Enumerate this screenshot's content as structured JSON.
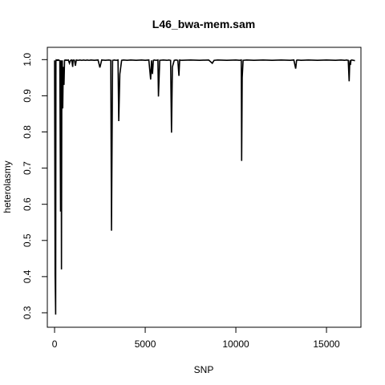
{
  "chart_data": {
    "type": "line",
    "title": "L46_bwa-mem.sam",
    "xlabel": "SNP",
    "ylabel": "heterolasmy",
    "xlim": [
      -400,
      16900
    ],
    "ylim": [
      0.26,
      1.034
    ],
    "x_ticks": [
      0,
      5000,
      10000,
      15000
    ],
    "y_ticks": [
      0.3,
      0.4,
      0.5,
      0.6,
      0.7,
      0.8,
      0.9,
      1.0
    ],
    "x_tick_labels": [
      "0",
      "5000",
      "10000",
      "15000"
    ],
    "y_tick_labels": [
      "0.3",
      "0.4",
      "0.5",
      "0.6",
      "0.7",
      "0.8",
      "0.9",
      "1.0"
    ],
    "grid": false,
    "legend": "none",
    "series": [
      {
        "color": "#000000",
        "x": [
          0,
          30,
          60,
          75,
          90,
          110,
          140,
          160,
          185,
          200,
          230,
          260,
          290,
          330,
          360,
          380,
          400,
          425,
          450,
          480,
          520,
          550,
          580,
          620,
          660,
          700,
          760,
          820,
          880,
          950,
          1000,
          1020,
          1060,
          1100,
          1150,
          1200,
          1300,
          1400,
          1500,
          1600,
          1700,
          1800,
          1900,
          2000,
          2200,
          2400,
          2500,
          2600,
          2800,
          3000,
          3100,
          3140,
          3200,
          3300,
          3400,
          3500,
          3540,
          3600,
          3700,
          3800,
          4000,
          4200,
          4500,
          4800,
          5000,
          5200,
          5300,
          5350,
          5400,
          5450,
          5500,
          5600,
          5700,
          5730,
          5800,
          6000,
          6200,
          6300,
          6400,
          6450,
          6500,
          6600,
          6700,
          6800,
          6860,
          6900,
          7000,
          7500,
          8000,
          8500,
          8700,
          8800,
          9000,
          9500,
          10000,
          10200,
          10300,
          10320,
          10350,
          10400,
          10600,
          11000,
          11500,
          12000,
          12500,
          13000,
          13200,
          13300,
          13350,
          13400,
          13600,
          14000,
          14500,
          15000,
          15500,
          15800,
          16000,
          16100,
          16200,
          16250,
          16280,
          16300,
          16320,
          16350,
          16400,
          16500,
          16569
        ],
        "y": [
          0.998,
          0.405,
          0.295,
          0.997,
          0.999,
          0.998,
          0.999,
          0.998,
          0.999,
          0.998,
          0.999,
          0.998,
          0.997,
          0.58,
          0.998,
          0.42,
          0.96,
          0.998,
          0.865,
          0.98,
          0.93,
          0.998,
          0.999,
          0.998,
          0.999,
          0.998,
          0.999,
          0.99,
          0.998,
          0.999,
          0.98,
          0.998,
          0.999,
          0.998,
          0.983,
          0.999,
          0.998,
          0.999,
          0.998,
          0.999,
          0.998,
          0.999,
          0.998,
          0.999,
          0.998,
          0.999,
          0.978,
          0.999,
          0.998,
          0.999,
          0.998,
          0.527,
          0.998,
          0.999,
          0.998,
          0.999,
          0.83,
          0.96,
          0.998,
          0.999,
          0.998,
          0.999,
          0.998,
          0.999,
          0.998,
          0.999,
          0.945,
          0.998,
          0.96,
          0.998,
          0.999,
          0.998,
          0.999,
          0.898,
          0.998,
          0.999,
          0.998,
          0.999,
          0.998,
          0.798,
          0.98,
          0.998,
          0.999,
          0.998,
          0.955,
          0.999,
          0.998,
          0.999,
          0.998,
          0.999,
          0.99,
          0.998,
          0.999,
          0.998,
          0.999,
          0.998,
          0.999,
          0.72,
          0.95,
          0.998,
          0.999,
          0.998,
          0.999,
          0.998,
          0.999,
          0.998,
          0.999,
          0.975,
          0.998,
          0.999,
          0.998,
          0.999,
          0.998,
          0.999,
          0.998,
          0.999,
          0.998,
          0.999,
          0.998,
          0.94,
          0.99,
          0.998,
          0.985,
          0.998,
          0.999,
          0.998,
          0.997
        ]
      }
    ]
  }
}
